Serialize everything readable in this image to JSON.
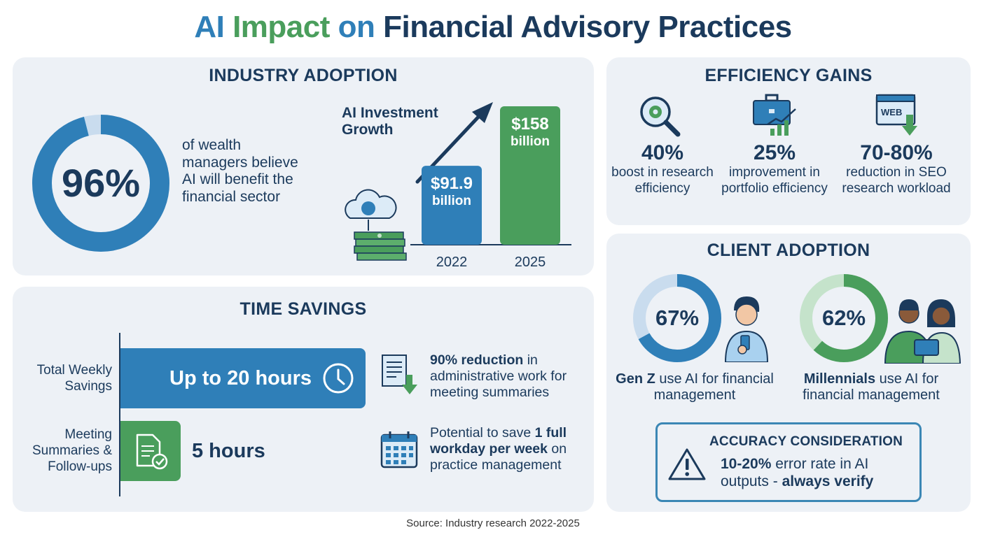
{
  "title": {
    "part1": "AI",
    "part2": "Impact",
    "part3": "on",
    "part4": "Financial Advisory Practices"
  },
  "adoption": {
    "heading": "INDUSTRY ADOPTION",
    "percent_label": "96%",
    "percent_value": 96,
    "description": "of wealth managers believe AI will benefit the financial sector",
    "investment": {
      "title": "AI Investment Growth",
      "bars": [
        {
          "year": "2022",
          "label_value": "$91.9",
          "label_unit": "billion",
          "value": 91.9
        },
        {
          "year": "2025",
          "label_value": "$158",
          "label_unit": "billion",
          "value": 158
        }
      ]
    }
  },
  "efficiency": {
    "heading": "EFFICIENCY GAINS",
    "items": [
      {
        "value": "40%",
        "desc": "boost in research efficiency",
        "icon": "magnifier-gear-icon"
      },
      {
        "value": "25%",
        "desc": "improvement in portfolio efficiency",
        "icon": "briefcase-chart-icon"
      },
      {
        "value": "70-80%",
        "desc": "reduction in SEO research workload",
        "icon": "web-download-icon",
        "icon_text": "WEB"
      }
    ]
  },
  "client": {
    "heading": "CLIENT ADOPTION",
    "genz": {
      "label": "67%",
      "value": 67,
      "strong": "Gen Z",
      "rest": " use AI for financial management"
    },
    "millennials": {
      "label": "62%",
      "value": 62,
      "strong": "Millennials",
      "rest": " use AI for financial management"
    },
    "accuracy": {
      "title": "ACCURACY CONSIDERATION",
      "text_strong1": "10-20%",
      "text_mid": " error rate in AI outputs - ",
      "text_strong2": "always verify"
    }
  },
  "time": {
    "heading": "TIME SAVINGS",
    "rows": [
      {
        "label": "Total Weekly Savings",
        "value": "Up to 20 hours",
        "hours": 20
      },
      {
        "label": "Meeting Summaries & Follow-ups",
        "value": "5 hours",
        "hours": 5
      }
    ],
    "notes": [
      {
        "strong": "90% reduction",
        "rest": " in administrative work for meeting summaries"
      },
      {
        "pre": "Potential to save ",
        "strong": "1 full workday per week",
        "rest": " on practice management"
      }
    ]
  },
  "source": "Source: Industry research 2022-2025",
  "colors": {
    "blue": "#2f7fb8",
    "green": "#4a9e5c",
    "navy": "#1b3a5c",
    "light_blue": "#c9dcee",
    "light_green": "#c5e3cb"
  }
}
